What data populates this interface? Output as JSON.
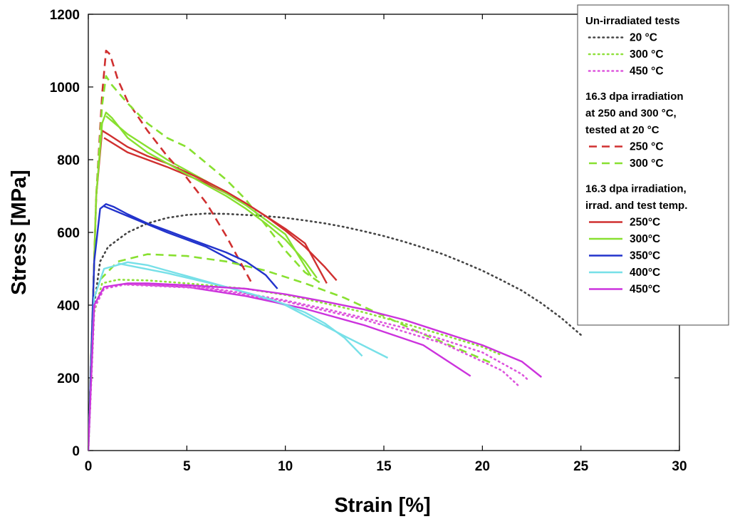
{
  "chart_data": {
    "type": "line",
    "title": "",
    "xlabel": "Strain  [%]",
    "ylabel": "Stress [MPa]",
    "xlim": [
      0,
      30
    ],
    "ylim": [
      0,
      1200
    ],
    "xticks": [
      "0",
      "5",
      "10",
      "15",
      "20",
      "25",
      "30"
    ],
    "yticks": [
      "0",
      "200",
      "400",
      "600",
      "800",
      "1000",
      "1200"
    ],
    "grid": false,
    "legend_position": "top-right",
    "legend_groups": [
      {
        "heading": [
          "Un-irradiated tests"
        ]
      },
      {
        "heading": [
          "16.3 dpa irradiation",
          "at 250 and 300 °C,",
          "tested at 20 °C"
        ]
      },
      {
        "heading": [
          "16.3 dpa irradiation,",
          "irrad. and test temp."
        ]
      }
    ],
    "series": [
      {
        "name": " 20 °C",
        "group": 0,
        "style": "dotted",
        "color": "#444444",
        "points": [
          [
            0,
            0
          ],
          [
            0.3,
            400
          ],
          [
            0.6,
            520
          ],
          [
            1,
            560
          ],
          [
            2,
            600
          ],
          [
            3,
            625
          ],
          [
            4,
            640
          ],
          [
            5,
            648
          ],
          [
            6,
            652
          ],
          [
            7,
            651
          ],
          [
            8,
            648
          ],
          [
            9,
            645
          ],
          [
            10,
            640
          ],
          [
            11,
            633
          ],
          [
            12,
            625
          ],
          [
            13,
            615
          ],
          [
            14,
            603
          ],
          [
            15,
            590
          ],
          [
            16,
            575
          ],
          [
            17,
            558
          ],
          [
            18,
            540
          ],
          [
            19,
            518
          ],
          [
            20,
            495
          ],
          [
            21,
            468
          ],
          [
            22,
            440
          ],
          [
            23,
            405
          ],
          [
            24,
            365
          ],
          [
            25,
            318
          ]
        ]
      },
      {
        "name": "300 °C",
        "group": 0,
        "style": "dotted",
        "color": "#8ee03a",
        "points": [
          [
            0,
            0
          ],
          [
            0.3,
            380
          ],
          [
            0.7,
            460
          ],
          [
            1.5,
            470
          ],
          [
            3,
            468
          ],
          [
            5,
            460
          ],
          [
            8,
            445
          ],
          [
            10,
            428
          ],
          [
            12,
            405
          ],
          [
            14,
            380
          ],
          [
            16,
            350
          ],
          [
            18,
            318
          ],
          [
            20,
            285
          ],
          [
            21,
            262
          ]
        ]
      },
      {
        "name": "450 °C",
        "group": 0,
        "style": "dotted",
        "color": "#dd55dd",
        "points": [
          [
            0,
            0
          ],
          [
            0.3,
            390
          ],
          [
            0.8,
            445
          ],
          [
            2,
            458
          ],
          [
            4,
            456
          ],
          [
            6,
            448
          ],
          [
            8,
            432
          ],
          [
            10,
            413
          ],
          [
            12,
            390
          ],
          [
            14,
            365
          ],
          [
            16,
            338
          ],
          [
            18,
            305
          ],
          [
            20,
            270
          ],
          [
            21,
            240
          ],
          [
            22,
            210
          ],
          [
            22.3,
            195
          ]
        ]
      },
      {
        "name": "250 °C",
        "group": 1,
        "style": "dashed",
        "color": "#d03030",
        "points": [
          [
            0,
            0
          ],
          [
            0.4,
            700
          ],
          [
            0.7,
            980
          ],
          [
            0.9,
            1100
          ],
          [
            1.1,
            1090
          ],
          [
            1.5,
            1020
          ],
          [
            2,
            960
          ],
          [
            3,
            880
          ],
          [
            4,
            810
          ],
          [
            5,
            750
          ],
          [
            6,
            680
          ],
          [
            7,
            590
          ],
          [
            8,
            490
          ],
          [
            8.3,
            460
          ]
        ]
      },
      {
        "name": "300 °C",
        "group": 1,
        "style": "dashed",
        "color": "#88e030",
        "points": [
          [
            0,
            0
          ],
          [
            0.4,
            700
          ],
          [
            0.7,
            950
          ],
          [
            0.9,
            1030
          ],
          [
            1.2,
            1005
          ],
          [
            2,
            955
          ],
          [
            3,
            900
          ],
          [
            4,
            860
          ],
          [
            5,
            835
          ],
          [
            6,
            790
          ],
          [
            7,
            745
          ],
          [
            8,
            690
          ],
          [
            9,
            620
          ],
          [
            10,
            550
          ],
          [
            11,
            490
          ],
          [
            11.8,
            460
          ]
        ]
      },
      {
        "name": "250°C",
        "group": 2,
        "style": "solid",
        "color": "#d03030",
        "points": [
          [
            0,
            0
          ],
          [
            0.4,
            700
          ],
          [
            0.7,
            880
          ],
          [
            1,
            870
          ],
          [
            2,
            835
          ],
          [
            3,
            810
          ],
          [
            4,
            790
          ],
          [
            5,
            765
          ],
          [
            6,
            740
          ],
          [
            7,
            712
          ],
          [
            8,
            680
          ],
          [
            9,
            645
          ],
          [
            10,
            605
          ],
          [
            11,
            560
          ],
          [
            12,
            505
          ],
          [
            12.6,
            468
          ]
        ]
      },
      {
        "name": "300°C",
        "group": 2,
        "style": "solid",
        "color": "#88e030",
        "points": [
          [
            0,
            0
          ],
          [
            0.4,
            700
          ],
          [
            0.7,
            900
          ],
          [
            0.9,
            930
          ],
          [
            1.2,
            915
          ],
          [
            2,
            860
          ],
          [
            3,
            820
          ],
          [
            4,
            790
          ],
          [
            5,
            760
          ],
          [
            6,
            730
          ],
          [
            7,
            700
          ],
          [
            8,
            665
          ],
          [
            9,
            625
          ],
          [
            10,
            580
          ],
          [
            11,
            520
          ],
          [
            11.6,
            475
          ]
        ]
      },
      {
        "name": "350°C",
        "group": 2,
        "style": "solid",
        "color": "#2233cc",
        "points": [
          [
            0,
            0
          ],
          [
            0.3,
            520
          ],
          [
            0.6,
            665
          ],
          [
            0.9,
            678
          ],
          [
            1.3,
            670
          ],
          [
            2,
            650
          ],
          [
            3,
            625
          ],
          [
            4,
            605
          ],
          [
            5,
            585
          ],
          [
            6,
            565
          ],
          [
            7,
            545
          ],
          [
            8,
            520
          ],
          [
            9,
            483
          ],
          [
            9.6,
            445
          ]
        ]
      },
      {
        "name": "400°C",
        "group": 2,
        "style": "solid",
        "color": "#77e0e8",
        "points": [
          [
            0,
            0
          ],
          [
            0.3,
            420
          ],
          [
            0.8,
            500
          ],
          [
            2,
            518
          ],
          [
            3,
            510
          ],
          [
            4,
            495
          ],
          [
            5,
            480
          ],
          [
            6,
            465
          ],
          [
            7,
            450
          ],
          [
            8,
            435
          ],
          [
            9,
            420
          ],
          [
            10,
            402
          ],
          [
            11,
            380
          ],
          [
            12,
            350
          ],
          [
            13,
            310
          ],
          [
            13.9,
            260
          ]
        ]
      },
      {
        "name": "450°C",
        "group": 2,
        "style": "solid",
        "color": "#cc33dd",
        "points": [
          [
            0,
            0
          ],
          [
            0.3,
            400
          ],
          [
            0.8,
            450
          ],
          [
            2,
            460
          ],
          [
            3,
            460
          ],
          [
            5,
            455
          ],
          [
            8,
            445
          ],
          [
            10,
            430
          ],
          [
            12,
            410
          ],
          [
            14,
            388
          ],
          [
            16,
            360
          ],
          [
            18,
            325
          ],
          [
            20,
            290
          ],
          [
            22,
            245
          ],
          [
            23,
            202
          ]
        ]
      }
    ],
    "extra_lines": [
      {
        "color": "#d03030",
        "style": "solid",
        "points": [
          [
            0.8,
            860
          ],
          [
            2,
            820
          ],
          [
            4,
            780
          ],
          [
            6,
            735
          ],
          [
            8,
            680
          ],
          [
            10,
            610
          ],
          [
            11,
            570
          ],
          [
            12.1,
            460
          ]
        ]
      },
      {
        "color": "#88e030",
        "style": "solid",
        "points": [
          [
            0.9,
            920
          ],
          [
            2,
            870
          ],
          [
            4,
            800
          ],
          [
            6,
            740
          ],
          [
            8,
            675
          ],
          [
            10,
            595
          ],
          [
            11.3,
            480
          ]
        ]
      },
      {
        "color": "#2233cc",
        "style": "solid",
        "points": [
          [
            0.8,
            672
          ],
          [
            2,
            645
          ],
          [
            4,
            600
          ],
          [
            6,
            560
          ],
          [
            7.9,
            505
          ]
        ]
      },
      {
        "color": "#77e0e8",
        "style": "solid",
        "points": [
          [
            1.5,
            515
          ],
          [
            4,
            488
          ],
          [
            7,
            450
          ],
          [
            10,
            400
          ],
          [
            13,
            315
          ],
          [
            15.2,
            255
          ]
        ]
      },
      {
        "color": "#cc33dd",
        "style": "solid",
        "points": [
          [
            2,
            458
          ],
          [
            5,
            450
          ],
          [
            8,
            425
          ],
          [
            11,
            390
          ],
          [
            14,
            345
          ],
          [
            17,
            290
          ],
          [
            19.4,
            205
          ]
        ]
      },
      {
        "color": "#88e030",
        "style": "dashed",
        "points": [
          [
            0.6,
            470
          ],
          [
            1.5,
            520
          ],
          [
            3,
            540
          ],
          [
            5,
            535
          ],
          [
            7,
            520
          ],
          [
            9,
            495
          ],
          [
            11,
            460
          ],
          [
            13,
            420
          ],
          [
            15,
            370
          ],
          [
            17,
            320
          ],
          [
            19,
            275
          ],
          [
            20.5,
            240
          ]
        ]
      },
      {
        "color": "#dd55dd",
        "style": "dotted",
        "points": [
          [
            2,
            456
          ],
          [
            6,
            446
          ],
          [
            10,
            410
          ],
          [
            14,
            360
          ],
          [
            18,
            295
          ],
          [
            21,
            220
          ],
          [
            21.9,
            175
          ]
        ]
      }
    ]
  }
}
